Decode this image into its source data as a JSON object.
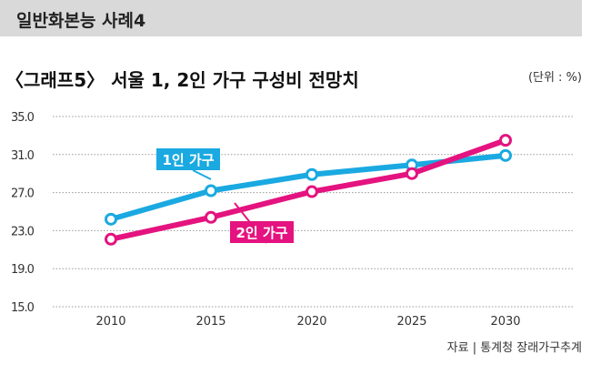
{
  "banner": "일반화본능 사례4",
  "chart_data": {
    "type": "line",
    "title": "〈그래프5〉 서울 1, 2인 가구 구성비 전망치",
    "unit": "(단위 : %)",
    "source": "자료 | 통계청 장래가구추계",
    "x": [
      "2010",
      "2015",
      "2020",
      "2025",
      "2030"
    ],
    "yticks": [
      "35.0",
      "31.0",
      "27.0",
      "23.0",
      "19.0",
      "15.0"
    ],
    "ylim": [
      15,
      35
    ],
    "grid": true,
    "series": [
      {
        "name": "1인 가구",
        "color": "#1aa9e1",
        "values": [
          24.2,
          27.2,
          28.9,
          29.9,
          30.9
        ]
      },
      {
        "name": "2인 가구",
        "color": "#e4137f",
        "values": [
          22.1,
          24.4,
          27.1,
          29.0,
          32.5
        ]
      }
    ]
  }
}
